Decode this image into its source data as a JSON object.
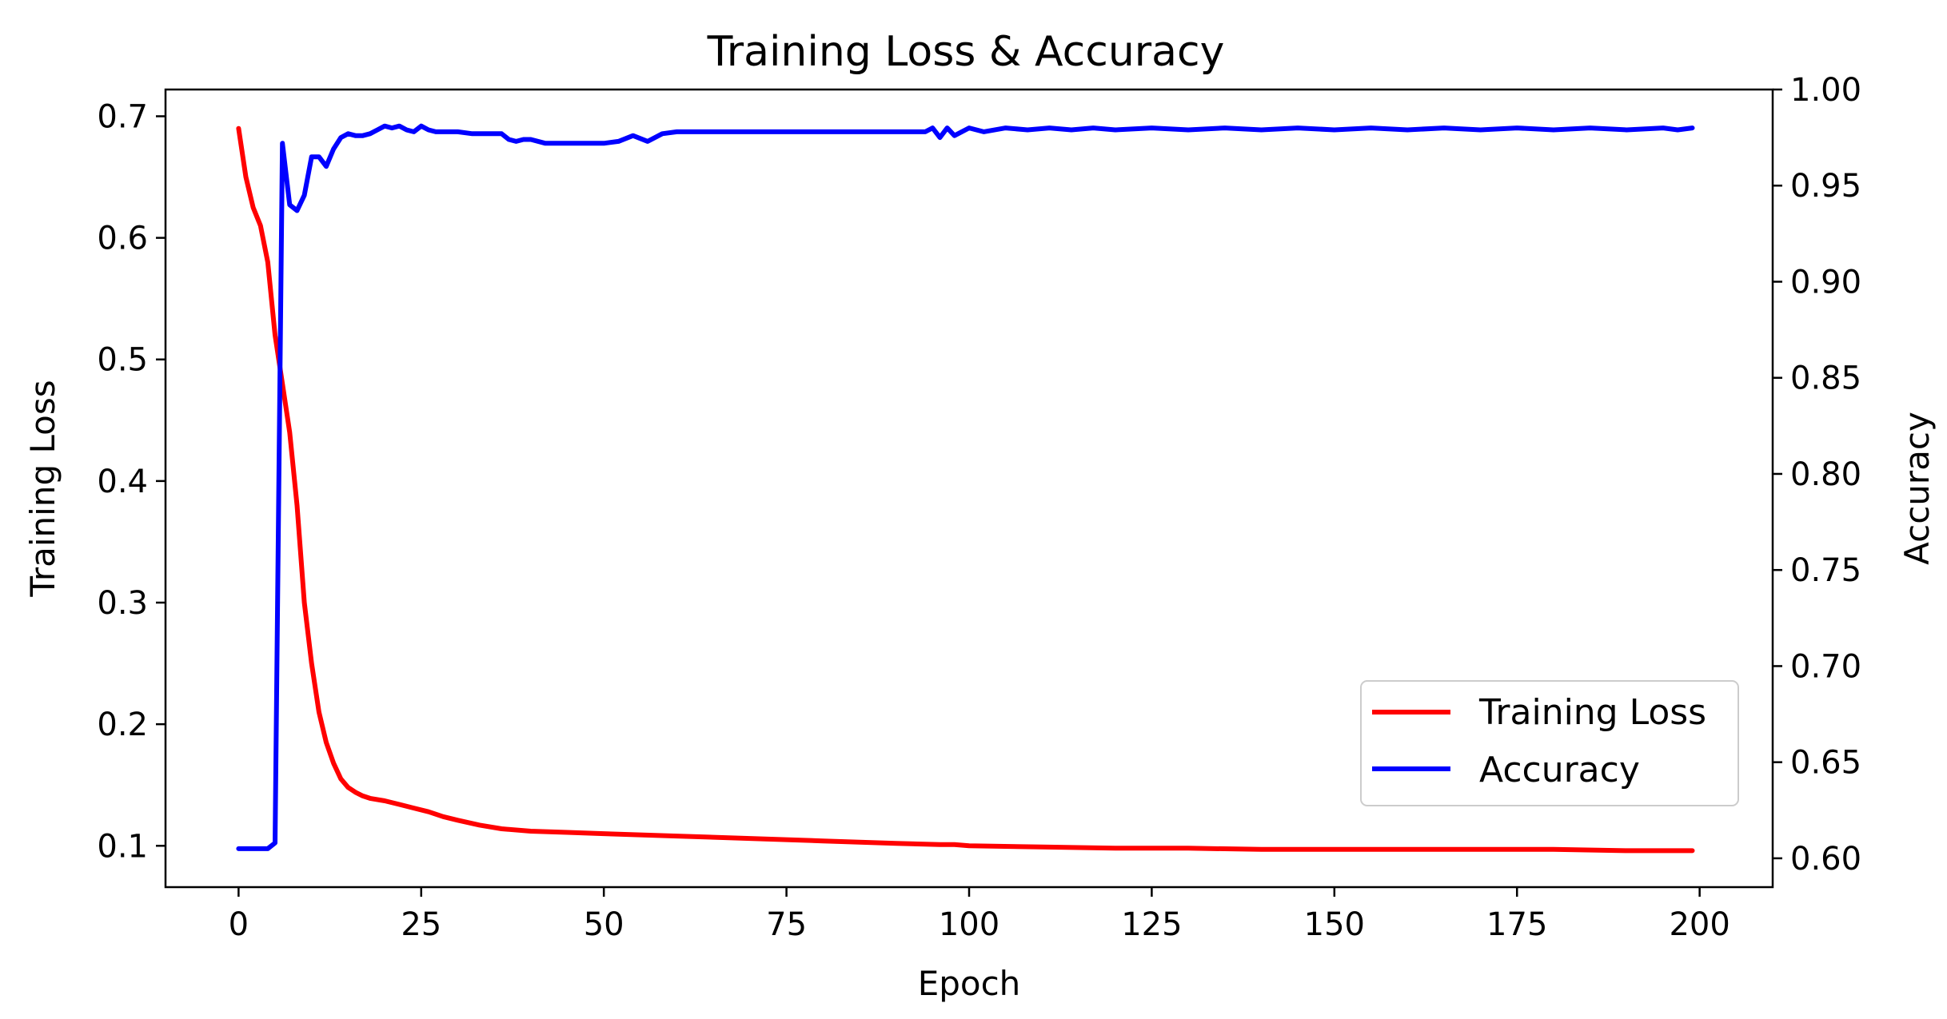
{
  "chart_data": {
    "type": "line",
    "title": "Training Loss & Accuracy",
    "xlabel": "Epoch",
    "ylabel_left": "Training Loss",
    "ylabel_right": "Accuracy",
    "xlim": [
      -10,
      210
    ],
    "ylim_left": [
      0.066,
      0.722
    ],
    "ylim_right": [
      0.585,
      1.0
    ],
    "xticks": [
      "0",
      "25",
      "50",
      "75",
      "100",
      "125",
      "150",
      "175",
      "200"
    ],
    "xtick_values": [
      0,
      25,
      50,
      75,
      100,
      125,
      150,
      175,
      200
    ],
    "yticks_left": [
      "0.1",
      "0.2",
      "0.3",
      "0.4",
      "0.5",
      "0.6",
      "0.7"
    ],
    "ytick_values_left": [
      0.1,
      0.2,
      0.3,
      0.4,
      0.5,
      0.6,
      0.7
    ],
    "yticks_right": [
      "0.60",
      "0.65",
      "0.70",
      "0.75",
      "0.80",
      "0.85",
      "0.90",
      "0.95",
      "1.00"
    ],
    "ytick_values_right": [
      0.6,
      0.65,
      0.7,
      0.75,
      0.8,
      0.85,
      0.9,
      0.95,
      1.0
    ],
    "grid": false,
    "legend_position": "lower-right",
    "series": [
      {
        "name": "Training Loss",
        "axis": "left",
        "color": "#ff0000",
        "x": [
          0,
          1,
          2,
          3,
          4,
          5,
          6,
          7,
          8,
          9,
          10,
          11,
          12,
          13,
          14,
          15,
          16,
          17,
          18,
          20,
          22,
          24,
          26,
          28,
          30,
          33,
          36,
          40,
          45,
          50,
          60,
          70,
          80,
          90,
          96,
          98,
          100,
          110,
          120,
          130,
          140,
          150,
          160,
          170,
          180,
          190,
          199
        ],
        "y": [
          0.69,
          0.65,
          0.625,
          0.61,
          0.58,
          0.52,
          0.48,
          0.44,
          0.38,
          0.3,
          0.25,
          0.21,
          0.185,
          0.168,
          0.155,
          0.148,
          0.144,
          0.141,
          0.139,
          0.137,
          0.134,
          0.131,
          0.128,
          0.124,
          0.121,
          0.117,
          0.114,
          0.112,
          0.111,
          0.11,
          0.108,
          0.106,
          0.104,
          0.102,
          0.101,
          0.101,
          0.1,
          0.099,
          0.098,
          0.098,
          0.097,
          0.097,
          0.097,
          0.097,
          0.097,
          0.096,
          0.096
        ]
      },
      {
        "name": "Accuracy",
        "axis": "right",
        "color": "#0000ff",
        "x": [
          0,
          1,
          2,
          3,
          4,
          5,
          6,
          7,
          8,
          9,
          10,
          11,
          12,
          13,
          14,
          15,
          16,
          17,
          18,
          19,
          20,
          21,
          22,
          23,
          24,
          25,
          26,
          27,
          28,
          30,
          32,
          34,
          36,
          37,
          38,
          39,
          40,
          42,
          44,
          46,
          48,
          50,
          52,
          54,
          56,
          58,
          60,
          70,
          80,
          90,
          94,
          95,
          96,
          97,
          98,
          100,
          102,
          105,
          108,
          111,
          114,
          117,
          120,
          125,
          130,
          135,
          140,
          145,
          150,
          155,
          160,
          165,
          170,
          175,
          180,
          185,
          190,
          195,
          197,
          199
        ],
        "y": [
          0.605,
          0.605,
          0.605,
          0.605,
          0.605,
          0.608,
          0.972,
          0.94,
          0.937,
          0.945,
          0.965,
          0.965,
          0.96,
          0.969,
          0.975,
          0.977,
          0.976,
          0.976,
          0.977,
          0.979,
          0.981,
          0.98,
          0.981,
          0.979,
          0.978,
          0.981,
          0.979,
          0.978,
          0.978,
          0.978,
          0.977,
          0.977,
          0.977,
          0.974,
          0.973,
          0.974,
          0.974,
          0.972,
          0.972,
          0.972,
          0.972,
          0.972,
          0.973,
          0.976,
          0.973,
          0.977,
          0.978,
          0.978,
          0.978,
          0.978,
          0.978,
          0.98,
          0.975,
          0.98,
          0.976,
          0.98,
          0.978,
          0.98,
          0.979,
          0.98,
          0.979,
          0.98,
          0.979,
          0.98,
          0.979,
          0.98,
          0.979,
          0.98,
          0.979,
          0.98,
          0.979,
          0.98,
          0.979,
          0.98,
          0.979,
          0.98,
          0.979,
          0.98,
          0.979,
          0.98
        ]
      }
    ]
  }
}
